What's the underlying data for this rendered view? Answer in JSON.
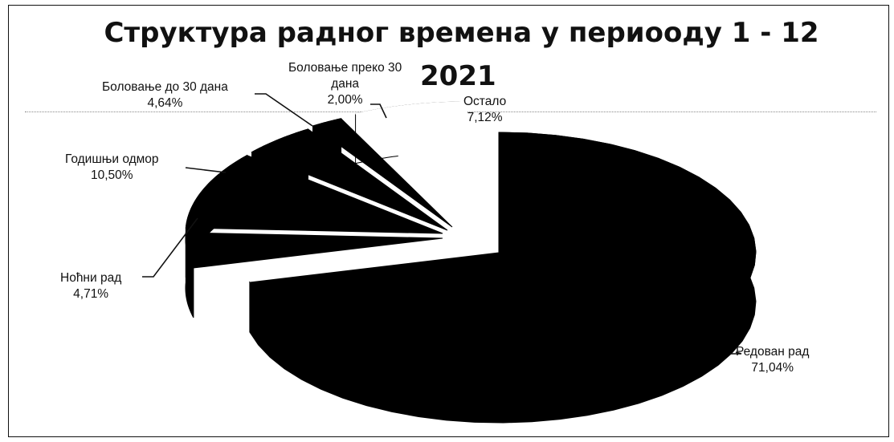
{
  "chart_data": {
    "type": "pie",
    "title_line1": "Структура радног времена у периооду 1 - 12",
    "title_line2": "2021",
    "slices": [
      {
        "name": "Редован рад",
        "value": 71.04,
        "label": "71,04%",
        "color": "#000000"
      },
      {
        "name": "Ноћни рад",
        "value": 4.71,
        "label": "4,71%",
        "color": "#000000"
      },
      {
        "name": "Годишњи одмор",
        "value": 10.5,
        "label": "10,50%",
        "color": "#000000"
      },
      {
        "name": "Боловање до 30 дана",
        "value": 4.64,
        "label": "4,64%",
        "color": "#000000"
      },
      {
        "name_line1": "Боловање преко 30",
        "name_line2": "дана",
        "value": 2.0,
        "label": "2,00%",
        "color": "#000000"
      },
      {
        "name": "Остало",
        "value": 7.12,
        "label": "7,12%",
        "color": "#ffffff"
      }
    ],
    "legend": "none"
  }
}
